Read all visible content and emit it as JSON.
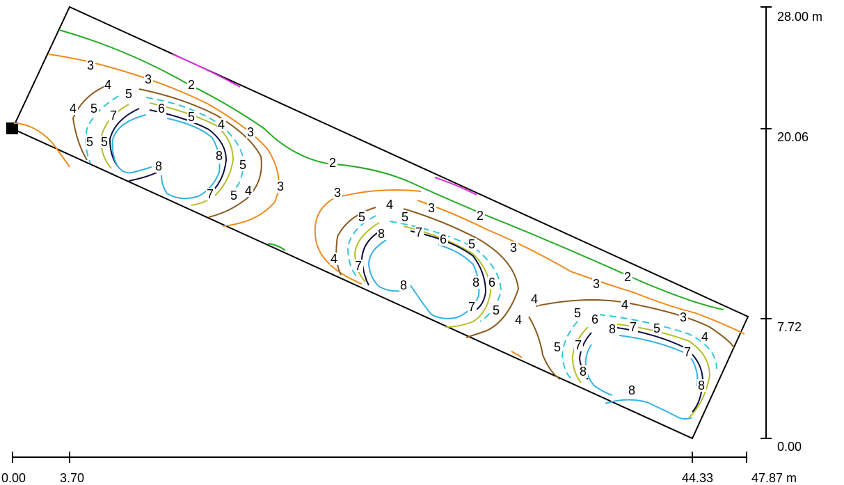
{
  "colors": {
    "background": "#ffffff",
    "outline": "#000000",
    "level_2": "#22aa22",
    "level_3": "#f08a1c",
    "level_4": "#8b5a1e",
    "level_5": "#33c6d6",
    "level_6": "#b4bf2a",
    "level_7": "#0d0d3f",
    "level_8": "#33b2e6",
    "level_1": "#e02ee0"
  },
  "scales": {
    "horizontal": {
      "ticks": [
        "0.00",
        "3.70",
        "44.33"
      ],
      "end_label": "47.87 m"
    },
    "vertical": {
      "ticks": [
        "0.00",
        "7.72",
        "20.06"
      ],
      "top_label": "28.00 m"
    }
  },
  "contour_labels": [
    "3",
    "3",
    "2",
    "4",
    "5",
    "4",
    "5",
    "6",
    "5",
    "4",
    "3",
    "5",
    "7",
    "5",
    "7",
    "8",
    "8",
    "5",
    "7",
    "5",
    "4",
    "3",
    "2",
    "3",
    "4",
    "5",
    "3",
    "2",
    "5",
    "8",
    "7",
    "6",
    "5",
    "3",
    "4",
    "7",
    "8",
    "8",
    "6",
    "3",
    "2",
    "7",
    "5",
    "4",
    "4",
    "4",
    "5",
    "6",
    "8",
    "7",
    "5",
    "3",
    "4",
    "5",
    "7",
    "7",
    "8",
    "8",
    "8"
  ],
  "luminaire_icon": "square-marker-icon"
}
